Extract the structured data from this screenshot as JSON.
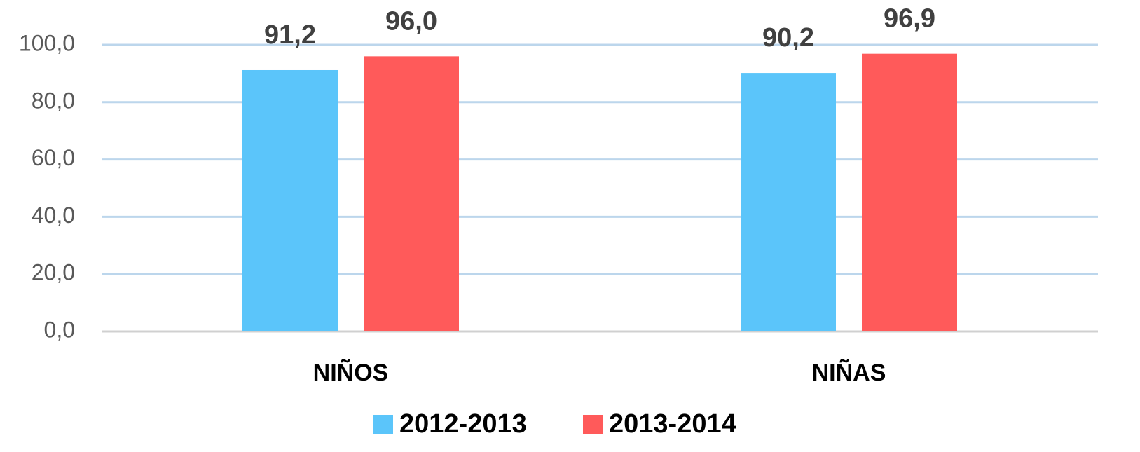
{
  "chart_data": {
    "type": "bar",
    "categories": [
      "NIÑOS",
      "NIÑAS"
    ],
    "series": [
      {
        "name": "2012-2013",
        "color": "#5bc5fa",
        "values": [
          91.2,
          90.2
        ],
        "value_labels": [
          "91,2",
          "90,2"
        ]
      },
      {
        "name": "2013-2014",
        "color": "#ff5a5a",
        "values": [
          96.0,
          96.9
        ],
        "value_labels": [
          "96,0",
          "96,9"
        ]
      }
    ],
    "ylim": [
      0,
      100
    ],
    "yticks": [
      {
        "value": 0,
        "label": "0,0"
      },
      {
        "value": 20,
        "label": "20,0"
      },
      {
        "value": 40,
        "label": "40,0"
      },
      {
        "value": 60,
        "label": "60,0"
      },
      {
        "value": 80,
        "label": "80,0"
      },
      {
        "value": 100,
        "label": "100,0"
      }
    ],
    "grid": true,
    "legend": "bottom"
  }
}
